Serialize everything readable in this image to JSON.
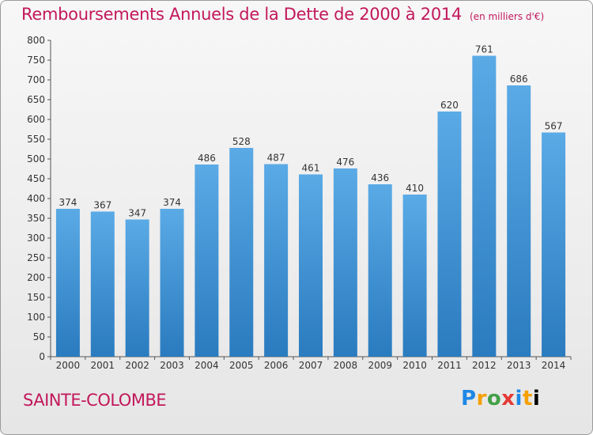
{
  "header": {
    "title": "Remboursements Annuels de la Dette de 2000 à 2014",
    "unit": "(en milliers d'€)"
  },
  "footer": {
    "commune": "SAINTE-COLOMBE",
    "brand": "Proxiti"
  },
  "colors": {
    "title": "#c2185b",
    "bar_top": "#5aaae6",
    "bar_bottom": "#2a7bbf"
  },
  "chart_data": {
    "type": "bar",
    "title": "Remboursements Annuels de la Dette de 2000 à 2014",
    "xlabel": "",
    "ylabel": "",
    "categories": [
      "2000",
      "2001",
      "2002",
      "2003",
      "2004",
      "2005",
      "2006",
      "2007",
      "2008",
      "2009",
      "2010",
      "2011",
      "2012",
      "2013",
      "2014"
    ],
    "values": [
      374,
      367,
      347,
      374,
      486,
      528,
      487,
      461,
      476,
      436,
      410,
      620,
      761,
      686,
      567
    ],
    "ylim": [
      0,
      800
    ],
    "yticks": [
      0,
      50,
      100,
      150,
      200,
      250,
      300,
      350,
      400,
      450,
      500,
      550,
      600,
      650,
      700,
      750,
      800
    ],
    "grid": false,
    "data_labels": true
  }
}
